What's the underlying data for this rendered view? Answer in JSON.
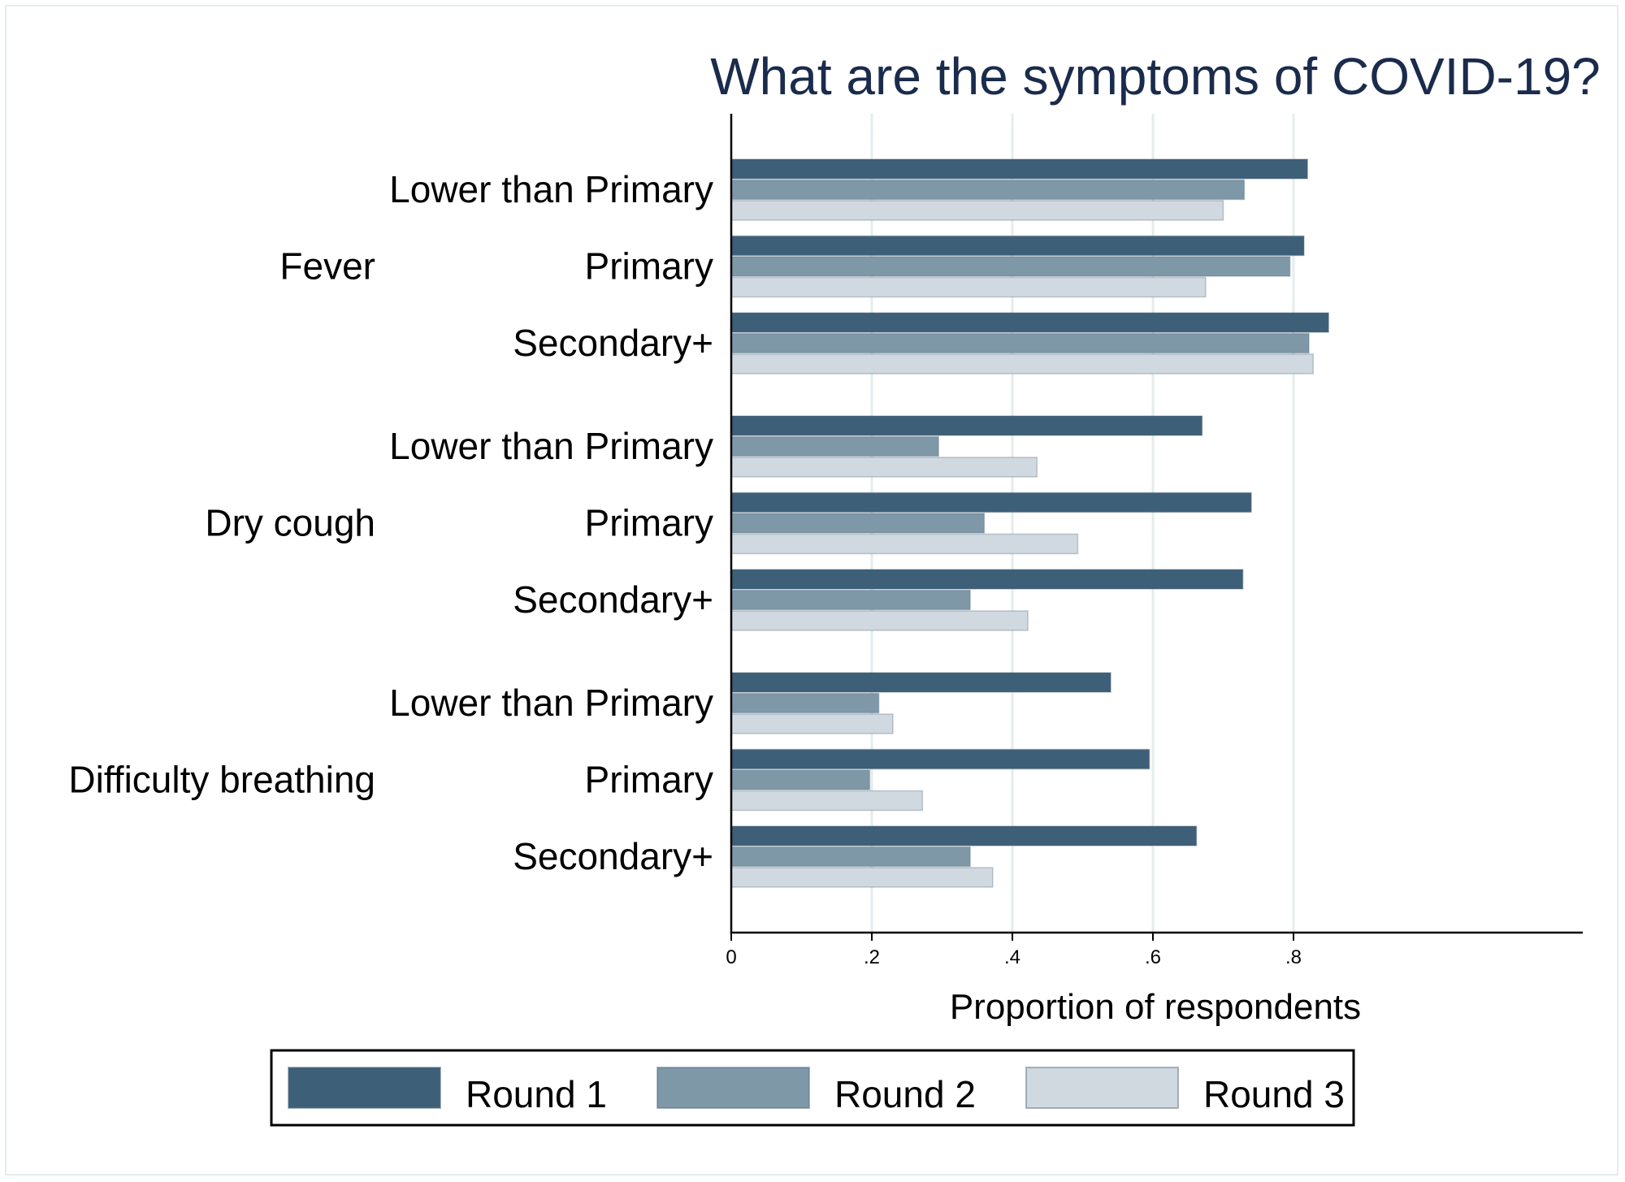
{
  "chart_data": {
    "type": "bar",
    "orientation": "horizontal",
    "title": "What are the symptoms of COVID-19?",
    "xlabel": "Proportion of respondents",
    "ylabel": "",
    "xlim": [
      0,
      0.89
    ],
    "x_ticks": [
      0,
      0.2,
      0.4,
      0.6,
      0.8
    ],
    "x_tick_labels": [
      "0",
      ".2",
      ".4",
      ".6",
      ".8"
    ],
    "grid": true,
    "legend_position": "bottom",
    "groups": [
      {
        "label": "Fever",
        "categories": [
          {
            "label": "Lower than Primary",
            "values": [
              0.82,
              0.73,
              0.7
            ]
          },
          {
            "label": "Primary",
            "values": [
              0.815,
              0.795,
              0.675
            ]
          },
          {
            "label": "Secondary+",
            "values": [
              0.85,
              0.822,
              0.828
            ]
          }
        ]
      },
      {
        "label": "Dry cough",
        "categories": [
          {
            "label": "Lower than Primary",
            "values": [
              0.67,
              0.295,
              0.435
            ]
          },
          {
            "label": "Primary",
            "values": [
              0.74,
              0.36,
              0.493
            ]
          },
          {
            "label": "Secondary+",
            "values": [
              0.728,
              0.34,
              0.422
            ]
          }
        ]
      },
      {
        "label": "Difficulty breathing",
        "categories": [
          {
            "label": "Lower than Primary",
            "values": [
              0.54,
              0.21,
              0.23
            ]
          },
          {
            "label": "Primary",
            "values": [
              0.595,
              0.197,
              0.272
            ]
          },
          {
            "label": "Secondary+",
            "values": [
              0.662,
              0.34,
              0.372
            ]
          }
        ]
      }
    ],
    "series": [
      {
        "name": "Round 1",
        "color": "#3e5f78"
      },
      {
        "name": "Round 2",
        "color": "#7f98a8"
      },
      {
        "name": "Round 3",
        "color": "#d1d9e0"
      }
    ]
  },
  "colors": {
    "title": "#1a2b4c",
    "grid": "#e4ecee",
    "axis": "#000000",
    "border": "#e6ecef"
  }
}
